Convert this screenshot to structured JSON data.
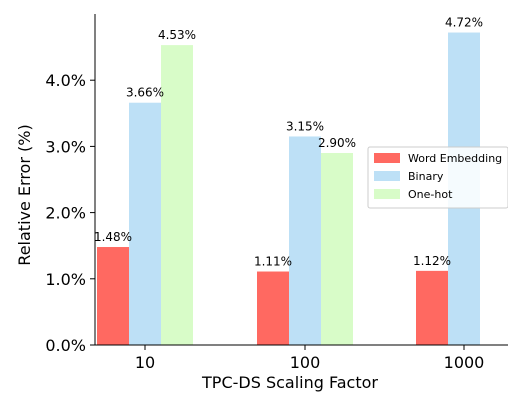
{
  "chart_data": {
    "type": "bar",
    "xlabel": "TPC-DS Scaling Factor",
    "ylabel": "Relative Error (%)",
    "categories": [
      "10",
      "100",
      "1000"
    ],
    "ylim": [
      0,
      5.0
    ],
    "yticks": [
      0,
      1,
      2,
      3,
      4
    ],
    "ytick_labels": [
      "0.0%",
      "1.0%",
      "2.0%",
      "3.0%",
      "4.0%"
    ],
    "grid": false,
    "legend_position": "center-right",
    "series": [
      {
        "name": "Word Embedding",
        "color": "#ff6961",
        "values": [
          1.48,
          1.11,
          1.12
        ],
        "labels": [
          "1.48%",
          "1.11%",
          "1.12%"
        ]
      },
      {
        "name": "Binary",
        "color": "#bde0f6",
        "values": [
          3.66,
          3.15,
          4.72
        ],
        "labels": [
          "3.66%",
          "3.15%",
          "4.72%"
        ]
      },
      {
        "name": "One-hot",
        "color": "#d8fcc8",
        "values": [
          4.53,
          2.9,
          null
        ],
        "labels": [
          "4.53%",
          "2.90%",
          null
        ]
      }
    ]
  }
}
